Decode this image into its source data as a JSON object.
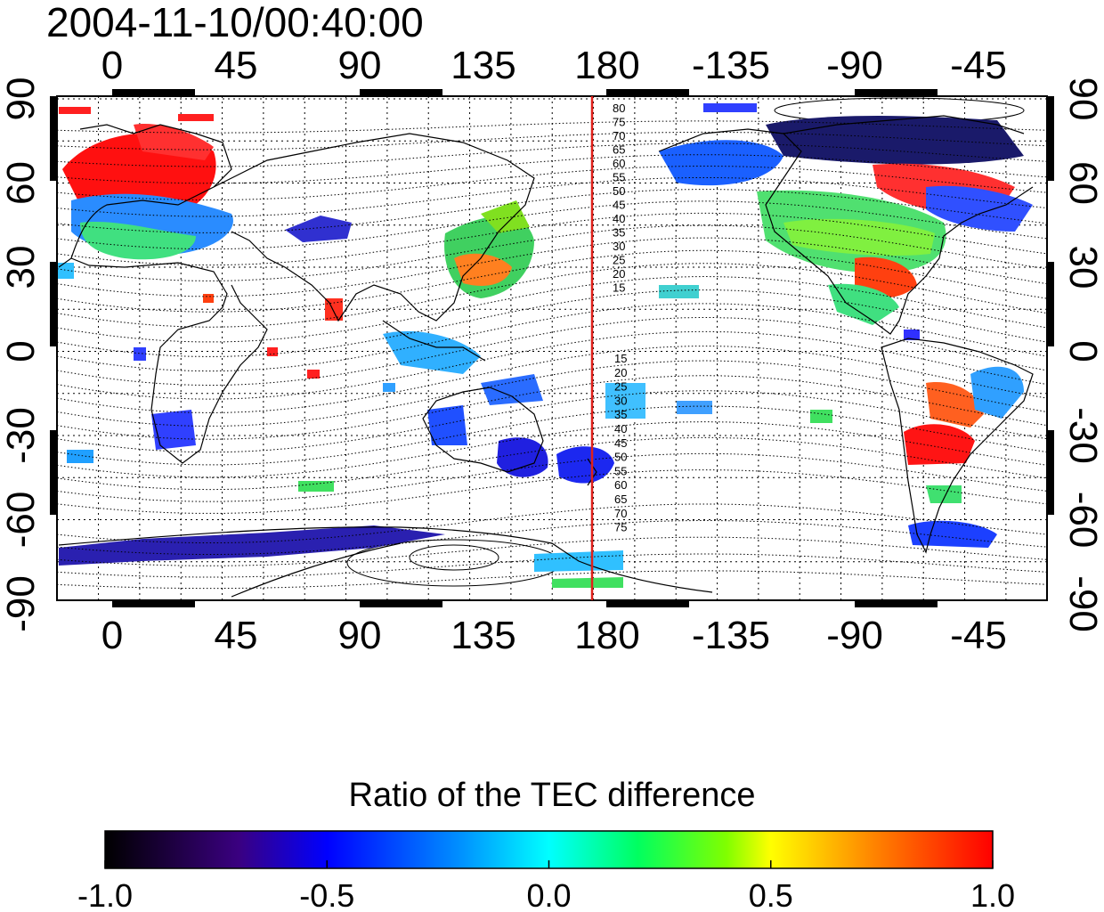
{
  "title": "2004-11-10/00:40:00",
  "map": {
    "lon_ticks": [
      "0",
      "45",
      "90",
      "135",
      "180",
      "-135",
      "-90",
      "-45"
    ],
    "lat_ticks": [
      "90",
      "60",
      "30",
      "0",
      "-30",
      "-60",
      "-90"
    ],
    "contour_labels_north": [
      "80",
      "75",
      "70",
      "65",
      "60",
      "55",
      "50",
      "45",
      "40",
      "35",
      "30",
      "25",
      "20",
      "15"
    ],
    "contour_labels_south": [
      "15",
      "20",
      "25",
      "30",
      "35",
      "40",
      "45",
      "50",
      "55",
      "60",
      "65",
      "70",
      "75"
    ],
    "highlight_meridian_lon": 174,
    "meridian_color": "#e0201a"
  },
  "colorbar": {
    "title": "Ratio of the TEC difference",
    "tick_labels": [
      "-1.0",
      "-0.5",
      "0.0",
      "0.5",
      "1.0"
    ],
    "range": [
      -1.0,
      1.0
    ],
    "colors": [
      "#000000",
      "#3a0080",
      "#0000ff",
      "#0090ff",
      "#00ffff",
      "#00ff60",
      "#80ff00",
      "#ffff00",
      "#ff8000",
      "#ff0000"
    ]
  }
}
